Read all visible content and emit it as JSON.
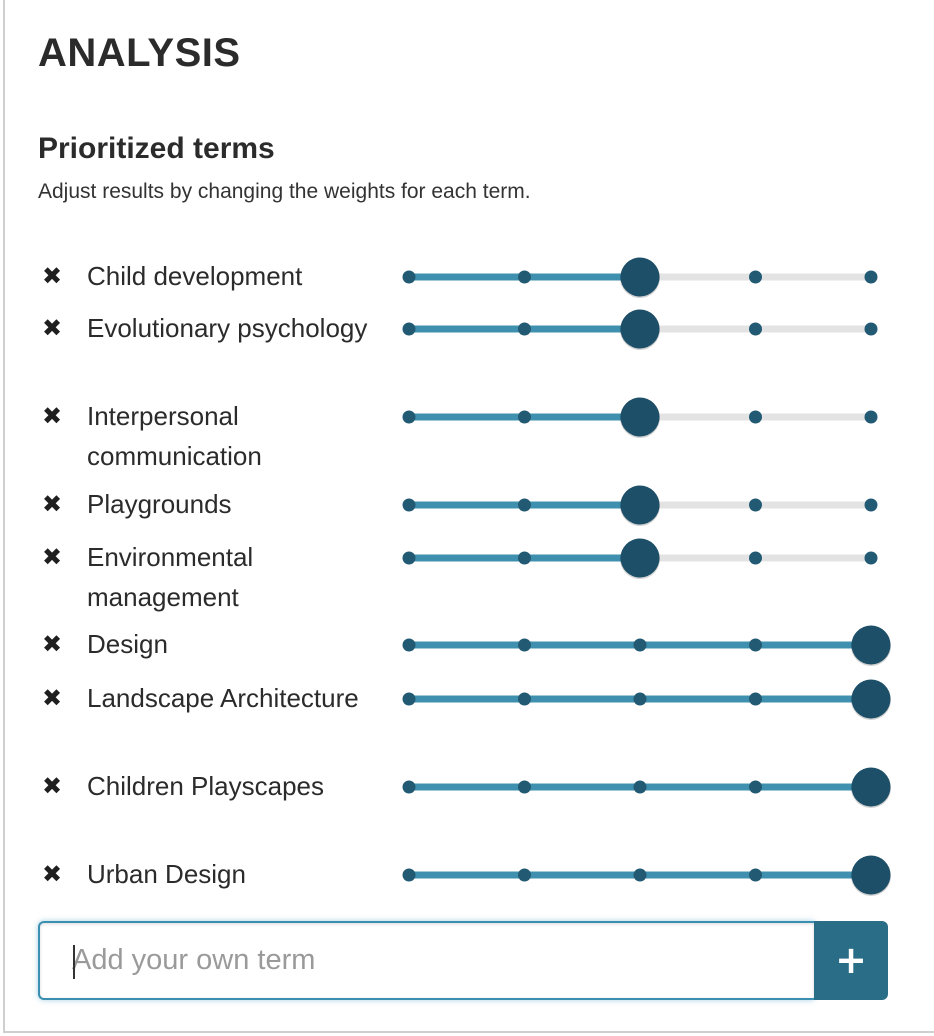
{
  "panel": {
    "title": "ANALYSIS",
    "subtitle": "Prioritized terms",
    "description": "Adjust results by changing the weights for each term."
  },
  "icons": {
    "remove": "close-icon",
    "add": "plus-icon"
  },
  "glyphs": {
    "remove": "✖",
    "add": "+"
  },
  "colors": {
    "track_active": "#3f8fae",
    "track_inactive": "#e3e3e3",
    "knob": "#1d4f68",
    "dot": "#225a74",
    "add_button": "#2a6d87"
  },
  "slider_steps": 5,
  "terms": [
    {
      "label": "Child development",
      "weight_step": 2
    },
    {
      "label": "Evolutionary psychology",
      "weight_step": 2
    },
    {
      "label": "Interpersonal communication",
      "weight_step": 2
    },
    {
      "label": "Playgrounds",
      "weight_step": 2
    },
    {
      "label": "Environmental management",
      "weight_step": 2
    },
    {
      "label": "Design",
      "weight_step": 4
    },
    {
      "label": "Landscape Architecture",
      "weight_step": 4
    },
    {
      "label": "Children Playscapes",
      "weight_step": 4
    },
    {
      "label": "Urban Design",
      "weight_step": 4
    }
  ],
  "add_term": {
    "placeholder": "Add your own term",
    "value": ""
  }
}
